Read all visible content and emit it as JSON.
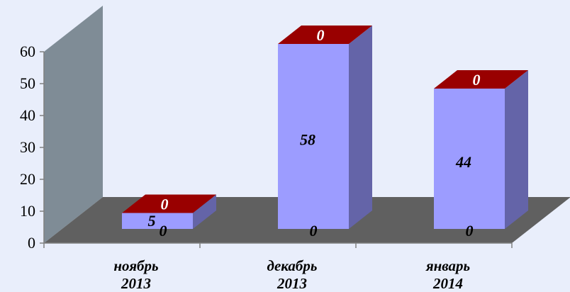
{
  "chart_data": {
    "type": "bar",
    "style": "3d-stacked-column",
    "categories": [
      [
        "ноябрь",
        "2013"
      ],
      [
        "декабрь",
        "2013"
      ],
      [
        "январь",
        "2014"
      ]
    ],
    "series": [
      {
        "color": "#9c9cff",
        "values": [
          5,
          58,
          44
        ],
        "labels": [
          "5",
          "58",
          "44"
        ]
      },
      {
        "color": "#990000",
        "values": [
          0,
          0,
          0
        ],
        "labels": [
          "0",
          "0",
          "0"
        ]
      }
    ],
    "base_labels": [
      "0",
      "0",
      "0"
    ],
    "ylim": [
      0,
      60
    ],
    "yticks": [
      "0",
      "10",
      "20",
      "30",
      "40",
      "50",
      "60"
    ],
    "colors": {
      "background": "#e9eefb",
      "wall": "#7f8c96",
      "floor": "#606060",
      "bar_front": "#9c9cff",
      "bar_side": "#6464a8",
      "cap": "#990000"
    },
    "grid": false,
    "legend": "none"
  }
}
